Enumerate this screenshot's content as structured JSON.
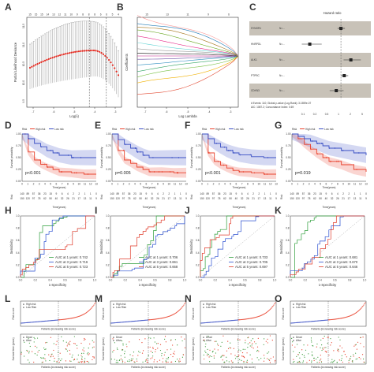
{
  "panels": {
    "A": {
      "letter": "A",
      "top_ticks": [
        "15",
        "15",
        "15",
        "14",
        "13",
        "12",
        "11",
        "10",
        "9",
        "8",
        "8",
        "8",
        "6",
        "6",
        "5",
        "4"
      ],
      "ylabel": "Partial Likelihood Deviance",
      "xlabel": "Log(λ)",
      "x_ticks": [
        "-7",
        "-6",
        "-5",
        "-4",
        "-3"
      ]
    },
    "B": {
      "letter": "B",
      "top_ticks": [
        "15",
        "13",
        "11",
        "9",
        "6"
      ],
      "ylabel": "Coefficients",
      "xlabel": "Log Lambda",
      "x_ticks": [
        "-7",
        "-6",
        "-5",
        "-4",
        "-3"
      ]
    },
    "C": {
      "letter": "C",
      "title": "Hazard ratio",
      "rows": [
        {
          "gene": "SYNGR1",
          "n": "N=..."
        },
        {
          "gene": "HNRPDL",
          "n": "N=..."
        },
        {
          "gene": "ALK1",
          "n": "N=..."
        },
        {
          "gene": "PTPRC",
          "n": "N=..."
        },
        {
          "gene": "CDKN3",
          "n": "N=..."
        }
      ],
      "footer1": "# Events: 110; Global p-value (Log-Rank): 3.1559e-07",
      "footer2": "AIC: 1087.2; Concordance Index: 0.69",
      "axis_ticks": [
        "0.1",
        "0.2",
        "0.5",
        "1",
        "2",
        "5"
      ]
    },
    "D": {
      "letter": "D",
      "pvalue": "p<0.001",
      "risk_label": "Risk",
      "high": "High risk",
      "low": "Low risk",
      "ylabel": "Survival probability",
      "xlabel": "Time(years)",
      "table_label": "Risk"
    },
    "E": {
      "letter": "E",
      "pvalue": "p=0.005",
      "risk_label": "Risk",
      "high": "High risk",
      "low": "Low risk",
      "ylabel": "Survival probability",
      "xlabel": "Time(years)",
      "table_label": "Risk"
    },
    "F": {
      "letter": "F",
      "pvalue": "p<0.001",
      "risk_label": "Risk",
      "high": "High risk",
      "low": "Low risk",
      "ylabel": "Survival probability",
      "xlabel": "Time(years)",
      "table_label": "Risk"
    },
    "G": {
      "letter": "G",
      "pvalue": "p=0.019",
      "risk_label": "Risk",
      "high": "High risk",
      "low": "Low risk",
      "ylabel": "Survival probability",
      "xlabel": "Time(years)",
      "table_label": "Risk"
    },
    "H": {
      "letter": "H",
      "ylabel": "Sensitivity",
      "xlabel": "1-Specificity",
      "legend": [
        "AUC at 1 years: 0.742",
        "AUC at 3 years: 0.716",
        "AUC at 5 years: 0.723"
      ]
    },
    "I": {
      "letter": "I",
      "ylabel": "Sensitivity",
      "xlabel": "1-Specificity",
      "legend": [
        "AUC at 1 years: 0.706",
        "AUC at 3 years: 0.661",
        "AUC at 5 years: 0.668"
      ]
    },
    "J": {
      "letter": "J",
      "ylabel": "Sensitivity",
      "xlabel": "1-Specificity",
      "legend": [
        "AUC at 1 years: 0.733",
        "AUC at 3 years: 0.705",
        "AUC at 5 years: 0.697"
      ]
    },
    "K": {
      "letter": "K",
      "ylabel": "Sensitivity",
      "xlabel": "1-Specificity",
      "legend": [
        "AUC at 1 years: 0.681",
        "AUC at 3 years: 0.670",
        "AUC at 5 years: 0.646"
      ]
    },
    "L": {
      "letter": "L",
      "top_legend": [
        "High risk",
        "Low Risk"
      ],
      "top_ylabel": "Risk score",
      "top_xlabel": "Patients (increasing risk score)",
      "bot_legend": [
        "Dead",
        "Alive"
      ],
      "bot_ylabel": "Survival time (years)",
      "bot_xlabel": "Patients (increasing risk score)"
    },
    "M": {
      "letter": "M",
      "top_legend": [
        "High risk",
        "Low Risk"
      ],
      "top_ylabel": "Risk score",
      "top_xlabel": "Patients (increasing risk score)",
      "bot_legend": [
        "Dead",
        "Alive"
      ],
      "bot_ylabel": "Survival time (years)",
      "bot_xlabel": "Patients (increasing risk score)"
    },
    "N": {
      "letter": "N",
      "top_legend": [
        "High risk",
        "Low Risk"
      ],
      "top_ylabel": "Risk score",
      "top_xlabel": "Patients (increasing risk score)",
      "bot_legend": [
        "Dead",
        "Alive"
      ],
      "bot_ylabel": "Survival time (years)",
      "bot_xlabel": "Patients (increasing risk score)"
    },
    "O": {
      "letter": "O",
      "top_legend": [
        "High risk",
        "Low Risk"
      ],
      "top_ylabel": "Risk score",
      "top_xlabel": "Patients (increasing risk score)",
      "bot_legend": [
        "Dead",
        "Alive"
      ],
      "bot_ylabel": "Survival time (years)",
      "bot_xlabel": "Patients (increasing risk score)"
    }
  },
  "colors": {
    "high": "#e8412c",
    "low": "#3a4fc4",
    "auc1": "#2e9e3a",
    "auc3": "#2a4fd0",
    "auc5": "#e03a2a",
    "cv": "#e3261c",
    "forest_band": "#c8c2b8"
  },
  "chart_data": [
    {
      "panel": "D",
      "type": "line",
      "pvalue": "p<0.001",
      "series": [
        {
          "name": "High risk",
          "x": [
            0,
            1,
            2,
            3,
            4,
            5,
            6,
            8,
            10,
            12
          ],
          "y": [
            1,
            0.62,
            0.45,
            0.36,
            0.3,
            0.25,
            0.2,
            0.18,
            0.15,
            0.15
          ]
        },
        {
          "name": "Low risk",
          "x": [
            0,
            1,
            2,
            3,
            4,
            5,
            6,
            8,
            10,
            12
          ],
          "y": [
            1,
            0.9,
            0.8,
            0.73,
            0.65,
            0.6,
            0.55,
            0.5,
            0.5,
            0.5
          ]
        }
      ]
    },
    {
      "panel": "E",
      "type": "line",
      "pvalue": "p=0.005",
      "series": [
        {
          "name": "High risk",
          "x": [
            0,
            1,
            2,
            3,
            4,
            5,
            6,
            8,
            10,
            12
          ],
          "y": [
            1,
            0.65,
            0.45,
            0.38,
            0.3,
            0.25,
            0.2,
            0.2,
            0.18,
            0.18
          ]
        },
        {
          "name": "Low risk",
          "x": [
            0,
            1,
            2,
            3,
            4,
            5,
            6,
            8,
            10,
            12
          ],
          "y": [
            1,
            0.88,
            0.78,
            0.7,
            0.62,
            0.55,
            0.5,
            0.5,
            0.5,
            0.5
          ]
        }
      ]
    },
    {
      "panel": "F",
      "type": "line",
      "pvalue": "p<0.001",
      "series": [
        {
          "name": "High risk",
          "x": [
            0,
            1,
            2,
            3,
            4,
            5,
            6,
            8,
            10,
            12
          ],
          "y": [
            1,
            0.6,
            0.42,
            0.34,
            0.28,
            0.23,
            0.2,
            0.18,
            0.15,
            0.15
          ]
        },
        {
          "name": "Low risk",
          "x": [
            0,
            1,
            2,
            3,
            4,
            5,
            6,
            8,
            10,
            12
          ],
          "y": [
            1,
            0.9,
            0.8,
            0.72,
            0.65,
            0.6,
            0.56,
            0.52,
            0.5,
            0.5
          ]
        }
      ]
    },
    {
      "panel": "G",
      "type": "line",
      "pvalue": "p=0.019",
      "series": [
        {
          "name": "High risk",
          "x": [
            0,
            1,
            2,
            3,
            4,
            5,
            6,
            8,
            10,
            12
          ],
          "y": [
            1,
            0.9,
            0.78,
            0.68,
            0.58,
            0.5,
            0.42,
            0.35,
            0.25,
            0.2
          ]
        },
        {
          "name": "Low risk",
          "x": [
            0,
            1,
            2,
            3,
            4,
            5,
            6,
            8,
            10,
            12
          ],
          "y": [
            1,
            0.95,
            0.9,
            0.85,
            0.8,
            0.75,
            0.7,
            0.65,
            0.6,
            0.55
          ]
        }
      ]
    },
    {
      "panel": "H",
      "type": "line",
      "auc": [
        0.742,
        0.716,
        0.723
      ]
    },
    {
      "panel": "I",
      "type": "line",
      "auc": [
        0.706,
        0.661,
        0.668
      ]
    },
    {
      "panel": "J",
      "type": "line",
      "auc": [
        0.733,
        0.705,
        0.697
      ]
    },
    {
      "panel": "K",
      "type": "line",
      "auc": [
        0.681,
        0.67,
        0.646
      ]
    }
  ]
}
